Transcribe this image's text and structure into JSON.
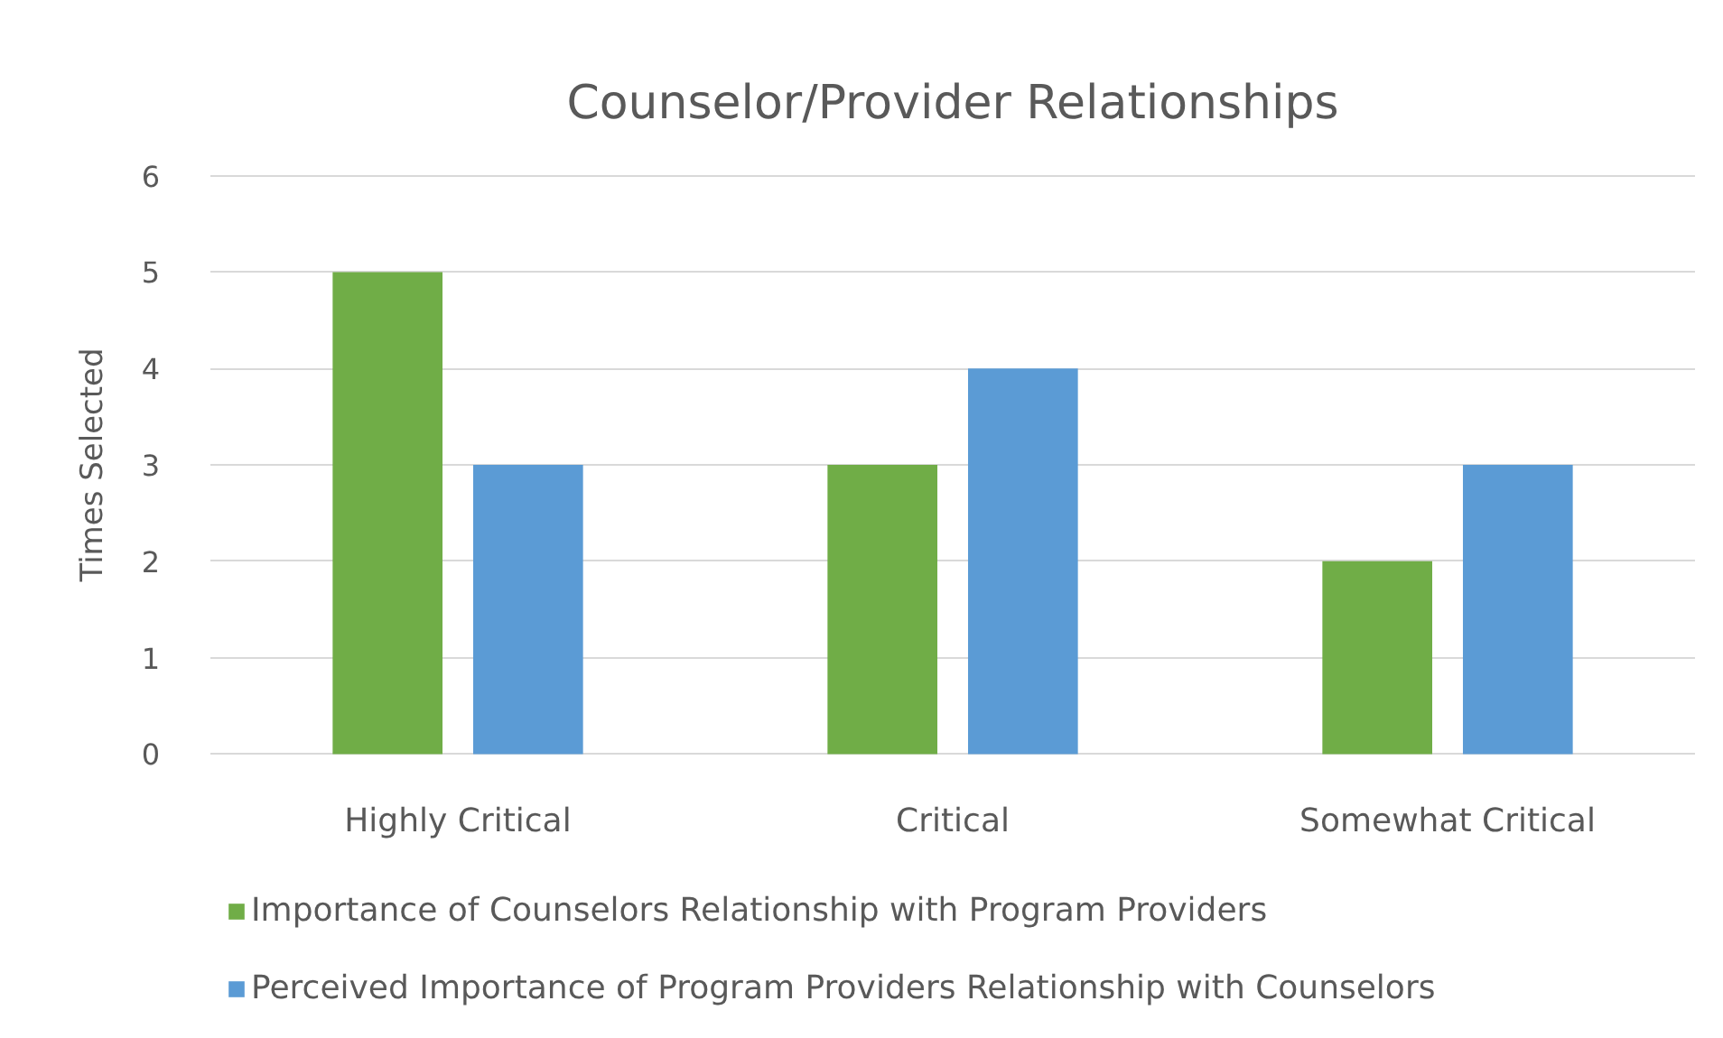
{
  "chart_data": {
    "type": "bar",
    "title": "Counselor/Provider Relationships",
    "ylabel": "Times Selected",
    "categories": [
      "Highly Critical",
      "Critical",
      "Somewhat Critical"
    ],
    "series": [
      {
        "name": "Importance of Counselors Relationship with Program Providers",
        "color": "#70ad47",
        "values": [
          5,
          3,
          2
        ]
      },
      {
        "name": "Perceived Importance of Program Providers Relationship with Counselors",
        "color": "#5b9bd5",
        "values": [
          3,
          4,
          3
        ]
      }
    ],
    "ylim": [
      0,
      6
    ],
    "yticks": [
      0,
      1,
      2,
      3,
      4,
      5,
      6
    ],
    "grid": "y",
    "legend": "bottom"
  }
}
